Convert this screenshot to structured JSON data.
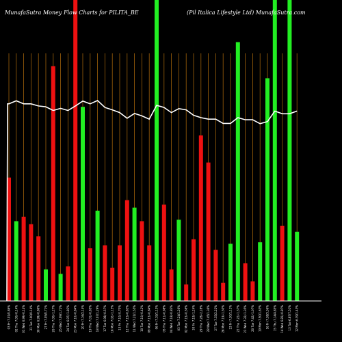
{
  "chart_data": {
    "type": "bar",
    "title_left": "MunafaSutra  Money Flow  Charts for PILITA_BE",
    "title_right": "(Pil Italica  Lifestyle   Ltd) MunafaSutra.com",
    "colors": {
      "background": "#000000",
      "up": "#22ee22",
      "down": "#ee1111",
      "grid": "#a0620a",
      "line": "#ffffff"
    },
    "grid": true,
    "ylim": [
      0,
      100
    ],
    "bars": [
      {
        "label": "03 Fri 7.01/0.86%",
        "value": 41,
        "dir": "down"
      },
      {
        "label": "02 Thu 7.00/-0.14%",
        "value": 26.5,
        "dir": "up"
      },
      {
        "label": "01 Wed 6.99/-0.14%",
        "value": 28,
        "dir": "down"
      },
      {
        "label": "31 Tue 7.00/0.14%",
        "value": 25.5,
        "dir": "down"
      },
      {
        "label": "30 Mon 6.99/-0.86%",
        "value": 21.5,
        "dir": "down"
      },
      {
        "label": "27 Fri 7.05/0.71%",
        "value": 10.5,
        "dir": "up"
      },
      {
        "label": "26 Thu 7.00/-1.27%",
        "value": 78,
        "dir": "down"
      },
      {
        "label": "25 Wed 7.09/1.72%",
        "value": 9,
        "dir": "up"
      },
      {
        "label": "24 Tue 6.97/-1.83%",
        "value": 11.5,
        "dir": "down"
      },
      {
        "label": "23 Mon 7.10/-0.84%",
        "value": 100,
        "dir": "down"
      },
      {
        "label": "20 Fri 7.16/2.14%",
        "value": 64.5,
        "dir": "up"
      },
      {
        "label": "19 Thu 7.01/-0.85%",
        "value": 17.5,
        "dir": "down"
      },
      {
        "label": "18 Wed 7.07/1.29%",
        "value": 30,
        "dir": "up"
      },
      {
        "label": "17 Tue 6.98/-0.57%",
        "value": 18.5,
        "dir": "down"
      },
      {
        "label": "16 Mon 7.02/-1.13%",
        "value": 11,
        "dir": "down"
      },
      {
        "label": "13 Fri 7.10/-0.70%",
        "value": 18.5,
        "dir": "down"
      },
      {
        "label": "12 Thu 7.15/-0.83%",
        "value": 33.5,
        "dir": "down"
      },
      {
        "label": "11 Wed 7.21/1.55%",
        "value": 31,
        "dir": "up"
      },
      {
        "label": "10 Tue 7.10/-0.42%",
        "value": 26.5,
        "dir": "down"
      },
      {
        "label": "09 Mon 7.13/-0.84%",
        "value": 18.5,
        "dir": "down"
      },
      {
        "label": "06 Fri 7.19/1.13%",
        "value": 100,
        "dir": "up"
      },
      {
        "label": "05 Thu 7.11/-0.98%",
        "value": 32,
        "dir": "down"
      },
      {
        "label": "04 Wed 7.18/-0.83%",
        "value": 10.5,
        "dir": "down"
      },
      {
        "label": "03 Tue 7.24/1.26%",
        "value": 27,
        "dir": "up"
      },
      {
        "label": "02 Mon 7.15/-0.56%",
        "value": 5.5,
        "dir": "down"
      },
      {
        "label": "30 Fri 7.19/-1.24%",
        "value": 20.5,
        "dir": "down"
      },
      {
        "label": "29 Thu 7.28/-2.28%",
        "value": 55,
        "dir": "down"
      },
      {
        "label": "28 Wed 7.45/1.36%",
        "value": 46,
        "dir": "down"
      },
      {
        "label": "27 Tue 7.35/2.22%",
        "value": 17,
        "dir": "down"
      },
      {
        "label": "26 Mon 7.19/-1.50%",
        "value": 6,
        "dir": "down"
      },
      {
        "label": "23 Fri 7.30/1.11%",
        "value": 19,
        "dir": "up"
      },
      {
        "label": "22 Thu 7.22/-1.37%",
        "value": 86,
        "dir": "up"
      },
      {
        "label": "21 Wed 7.32/-1.35%",
        "value": 12.5,
        "dir": "down"
      },
      {
        "label": "20 Tue 7.42/-1.07%",
        "value": 6.5,
        "dir": "down"
      },
      {
        "label": "19 Mon 7.50/1.63%",
        "value": 19.5,
        "dir": "up"
      },
      {
        "label": "16 Fri 7.38/3.36%",
        "value": 74,
        "dir": "up"
      },
      {
        "label": "15 Thu 7.14/4.85%",
        "value": 100,
        "dir": "up"
      },
      {
        "label": "14 Wed 6.81/-0.87%",
        "value": 25,
        "dir": "down"
      },
      {
        "label": "13 Tue 6.87/7.51%",
        "value": 100,
        "dir": "up"
      },
      {
        "label": "12 Mon 6.39/1.43%",
        "value": 23,
        "dir": "up"
      }
    ],
    "line_values": [
      65.5,
      66.5,
      65.5,
      65.5,
      64.8,
      64.5,
      63.3,
      64,
      63.3,
      64.8,
      66.4,
      65.5,
      66.6,
      64.3,
      63.5,
      62.6,
      60.7,
      62.3,
      61.5,
      60.4,
      65,
      64.3,
      62.6,
      63.9,
      63.5,
      61.7,
      60.9,
      60.4,
      60.4,
      59,
      59,
      60.9,
      60.2,
      60.2,
      58.9,
      59.6,
      63.1,
      62.2,
      62.2,
      63.1
    ]
  }
}
